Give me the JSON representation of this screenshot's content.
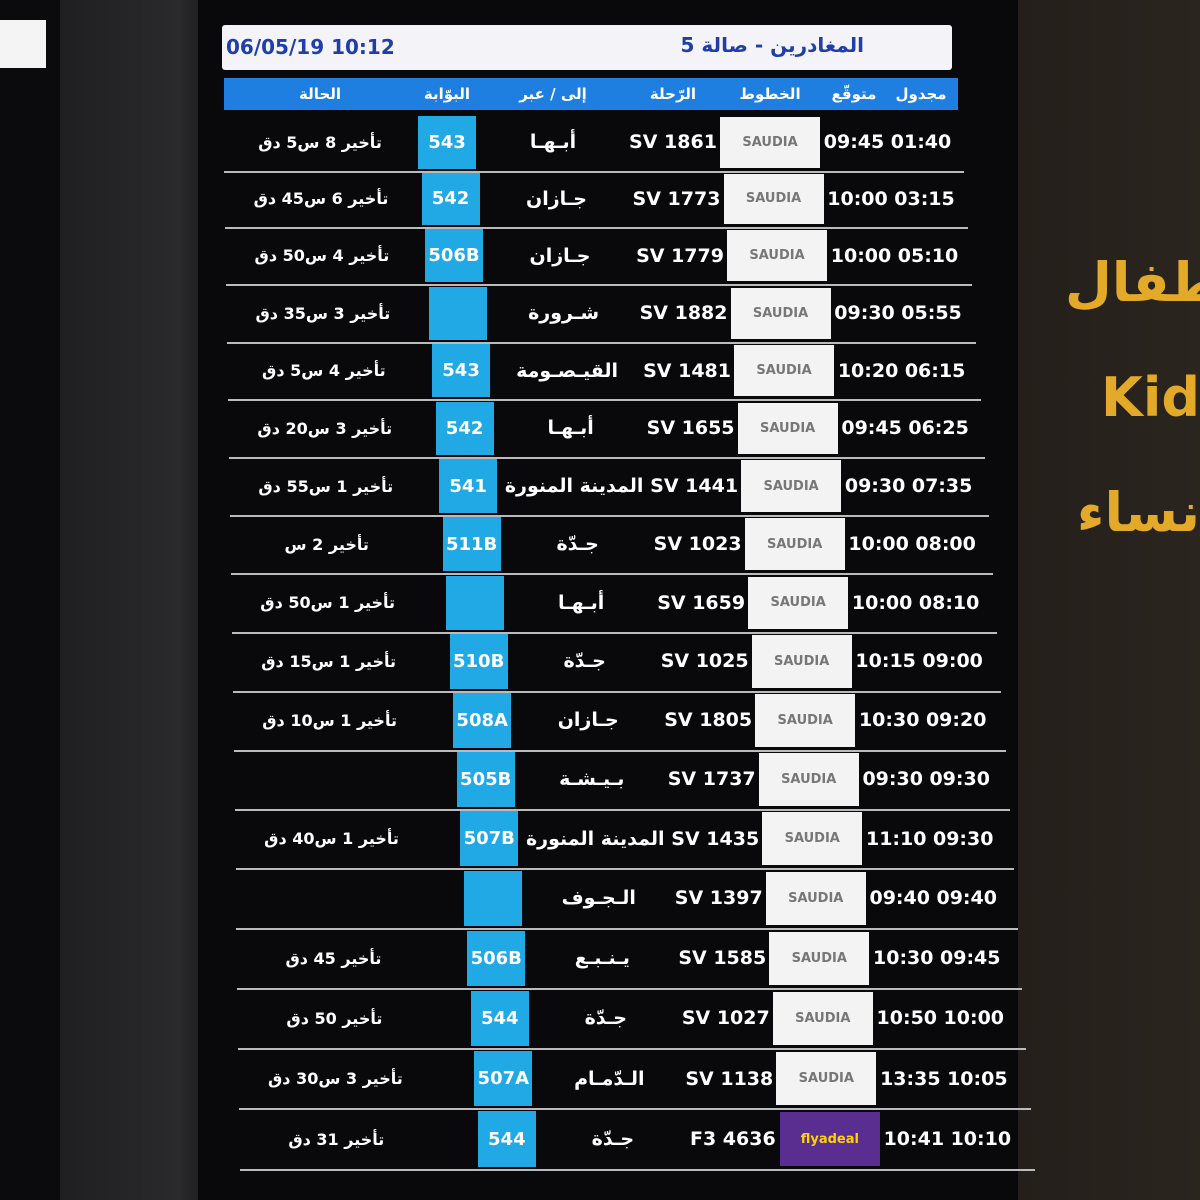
{
  "board": {
    "title": "المغادرين - صالة 5",
    "datetime": "06/05/19 10:12",
    "columns": {
      "scheduled": "مجدول",
      "expected": "متوقّع",
      "airline": "الخطوط",
      "flight": "الرّحلة",
      "destination": "إلى / عبر",
      "gate": "البوّابة",
      "status": "الحالة"
    },
    "rows": [
      {
        "scheduled": "01:40",
        "expected": "09:45",
        "airline": "SAUDIA",
        "flight": "SV 1861",
        "destination": "أبـهـا",
        "gate": "543",
        "status": "تأخير 8 س5 دق"
      },
      {
        "scheduled": "03:15",
        "expected": "10:00",
        "airline": "SAUDIA",
        "flight": "SV 1773",
        "destination": "جـازان",
        "gate": "542",
        "status": "تأخير 6 س45 دق"
      },
      {
        "scheduled": "05:10",
        "expected": "10:00",
        "airline": "SAUDIA",
        "flight": "SV 1779",
        "destination": "جـازان",
        "gate": "506B",
        "status": "تأخير 4 س50 دق"
      },
      {
        "scheduled": "05:55",
        "expected": "09:30",
        "airline": "SAUDIA",
        "flight": "SV 1882",
        "destination": "شـرورة",
        "gate": null,
        "status": "تأخير 3 س35 دق"
      },
      {
        "scheduled": "06:15",
        "expected": "10:20",
        "airline": "SAUDIA",
        "flight": "SV 1481",
        "destination": "القيـصـومة",
        "gate": "543",
        "status": "تأخير 4 س5 دق"
      },
      {
        "scheduled": "06:25",
        "expected": "09:45",
        "airline": "SAUDIA",
        "flight": "SV 1655",
        "destination": "أبـهـا",
        "gate": "542",
        "status": "تأخير 3 س20 دق"
      },
      {
        "scheduled": "07:35",
        "expected": "09:30",
        "airline": "SAUDIA",
        "flight": "SV 1441",
        "destination": "المدينة المنورة",
        "gate": "541",
        "status": "تأخير 1 س55 دق"
      },
      {
        "scheduled": "08:00",
        "expected": "10:00",
        "airline": "SAUDIA",
        "flight": "SV 1023",
        "destination": "جـدّة",
        "gate": "511B",
        "status": "تأخير 2 س"
      },
      {
        "scheduled": "08:10",
        "expected": "10:00",
        "airline": "SAUDIA",
        "flight": "SV 1659",
        "destination": "أبـهـا",
        "gate": null,
        "status": "تأخير 1 س50 دق"
      },
      {
        "scheduled": "09:00",
        "expected": "10:15",
        "airline": "SAUDIA",
        "flight": "SV 1025",
        "destination": "جـدّة",
        "gate": "510B",
        "status": "تأخير 1 س15 دق"
      },
      {
        "scheduled": "09:20",
        "expected": "10:30",
        "airline": "SAUDIA",
        "flight": "SV 1805",
        "destination": "جـازان",
        "gate": "508A",
        "status": "تأخير 1 س10 دق"
      },
      {
        "scheduled": "09:30",
        "expected": "09:30",
        "airline": "SAUDIA",
        "flight": "SV 1737",
        "destination": "بـيـشـة",
        "gate": "505B",
        "status": null
      },
      {
        "scheduled": "09:30",
        "expected": "11:10",
        "airline": "SAUDIA",
        "flight": "SV 1435",
        "destination": "المدينة المنورة",
        "gate": "507B",
        "status": "تأخير 1 س40 دق"
      },
      {
        "scheduled": "09:40",
        "expected": "09:40",
        "airline": "SAUDIA",
        "flight": "SV 1397",
        "destination": "الـجـوف",
        "gate": null,
        "status": null
      },
      {
        "scheduled": "09:45",
        "expected": "10:30",
        "airline": "SAUDIA",
        "flight": "SV 1585",
        "destination": "يـنـبـع",
        "gate": "506B",
        "status": "تأخير 45 دق"
      },
      {
        "scheduled": "10:00",
        "expected": "10:50",
        "airline": "SAUDIA",
        "flight": "SV 1027",
        "destination": "جـدّة",
        "gate": "544",
        "status": "تأخير 50 دق"
      },
      {
        "scheduled": "10:05",
        "expected": "13:35",
        "airline": "SAUDIA",
        "flight": "SV 1138",
        "destination": "الـدّمـام",
        "gate": "507A",
        "status": "تأخير 3 س30 دق"
      },
      {
        "scheduled": "10:10",
        "expected": "10:41",
        "airline": "flyadeal",
        "flight": "F3 4636",
        "destination": "جـدّة",
        "gate": "544",
        "status": "تأخير 31 دق"
      }
    ]
  },
  "sign": {
    "lines": [
      "طفال",
      "Kid",
      "نساء"
    ]
  }
}
